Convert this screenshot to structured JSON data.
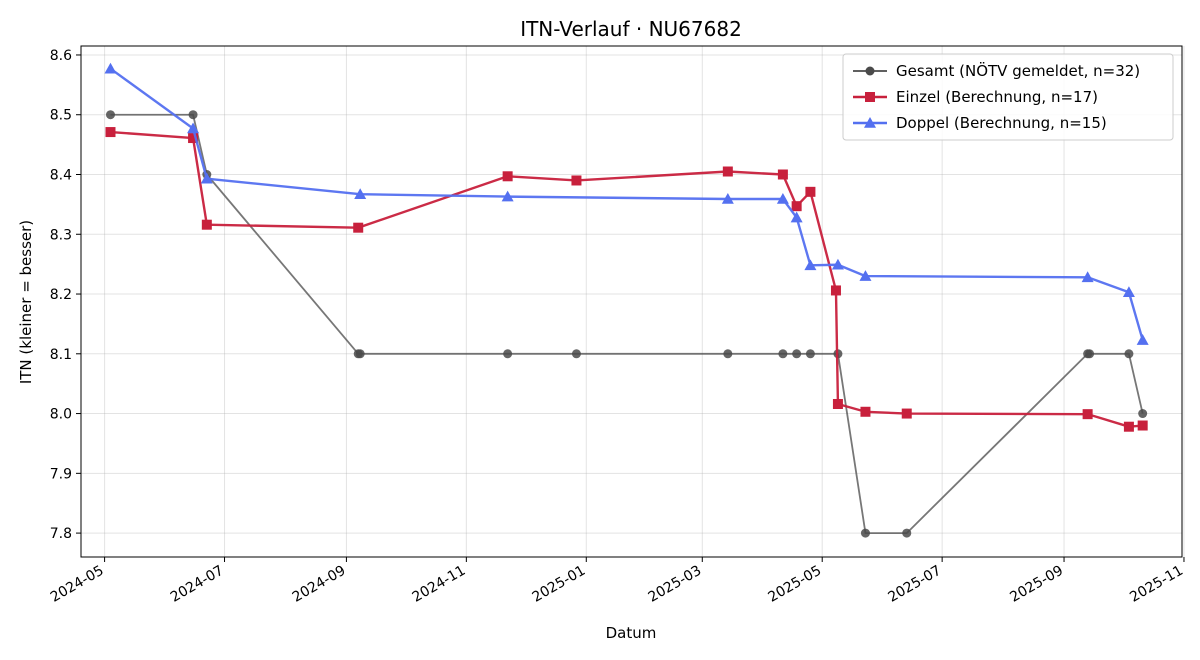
{
  "chart_data": {
    "type": "line",
    "title": "ITN-Verlauf · NU67682",
    "xlabel": "Datum",
    "ylabel": "ITN  (kleiner = besser)",
    "x_type": "date",
    "xlim": [
      "2024-04-19",
      "2025-10-31"
    ],
    "ylim": [
      7.76,
      8.615
    ],
    "x_ticks": [
      {
        "date": "2024-05-01",
        "label": "2024-05"
      },
      {
        "date": "2024-07-01",
        "label": "2024-07"
      },
      {
        "date": "2024-09-01",
        "label": "2024-09"
      },
      {
        "date": "2024-11-01",
        "label": "2024-11"
      },
      {
        "date": "2025-01-01",
        "label": "2025-01"
      },
      {
        "date": "2025-03-01",
        "label": "2025-03"
      },
      {
        "date": "2025-05-01",
        "label": "2025-05"
      },
      {
        "date": "2025-07-01",
        "label": "2025-07"
      },
      {
        "date": "2025-09-01",
        "label": "2025-09"
      },
      {
        "date": "2025-11-01",
        "label": "2025-11"
      }
    ],
    "y_ticks": [
      7.8,
      7.9,
      8.0,
      8.1,
      8.2,
      8.3,
      8.4,
      8.5,
      8.6
    ],
    "grid": true,
    "legend_position": "top-right",
    "series": [
      {
        "name": "Gesamt (NÖTV gemeldet, n=32)",
        "color": "#4a4a4a",
        "marker": "circle",
        "points": [
          {
            "x": "2024-05-04",
            "y": 8.5
          },
          {
            "x": "2024-06-15",
            "y": 8.5
          },
          {
            "x": "2024-06-22",
            "y": 8.4
          },
          {
            "x": "2024-09-07",
            "y": 8.1
          },
          {
            "x": "2024-09-08",
            "y": 8.1
          },
          {
            "x": "2024-11-22",
            "y": 8.1
          },
          {
            "x": "2024-12-27",
            "y": 8.1
          },
          {
            "x": "2025-03-14",
            "y": 8.1
          },
          {
            "x": "2025-04-11",
            "y": 8.1
          },
          {
            "x": "2025-04-18",
            "y": 8.1
          },
          {
            "x": "2025-04-25",
            "y": 8.1
          },
          {
            "x": "2025-05-09",
            "y": 8.1
          },
          {
            "x": "2025-05-23",
            "y": 7.8
          },
          {
            "x": "2025-06-13",
            "y": 7.8
          },
          {
            "x": "2025-09-13",
            "y": 8.1
          },
          {
            "x": "2025-09-14",
            "y": 8.1
          },
          {
            "x": "2025-10-04",
            "y": 8.1
          },
          {
            "x": "2025-10-11",
            "y": 8.0
          }
        ]
      },
      {
        "name": "Einzel (Berechnung, n=17)",
        "color": "#c8203c",
        "marker": "square",
        "points": [
          {
            "x": "2024-05-04",
            "y": 8.471
          },
          {
            "x": "2024-06-15",
            "y": 8.461
          },
          {
            "x": "2024-06-22",
            "y": 8.316
          },
          {
            "x": "2024-09-07",
            "y": 8.311
          },
          {
            "x": "2024-11-22",
            "y": 8.397
          },
          {
            "x": "2024-12-27",
            "y": 8.39
          },
          {
            "x": "2025-03-14",
            "y": 8.405
          },
          {
            "x": "2025-04-11",
            "y": 8.4
          },
          {
            "x": "2025-04-18",
            "y": 8.347
          },
          {
            "x": "2025-04-25",
            "y": 8.371
          },
          {
            "x": "2025-05-08",
            "y": 8.206
          },
          {
            "x": "2025-05-09",
            "y": 8.016
          },
          {
            "x": "2025-05-23",
            "y": 8.003
          },
          {
            "x": "2025-06-13",
            "y": 8.0
          },
          {
            "x": "2025-09-13",
            "y": 7.999
          },
          {
            "x": "2025-10-04",
            "y": 7.978
          },
          {
            "x": "2025-10-11",
            "y": 7.98
          }
        ]
      },
      {
        "name": "Doppel (Berechnung, n=15)",
        "color": "#5470f0",
        "marker": "triangle",
        "points": [
          {
            "x": "2024-05-04",
            "y": 8.577
          },
          {
            "x": "2024-06-15",
            "y": 8.477
          },
          {
            "x": "2024-06-22",
            "y": 8.393
          },
          {
            "x": "2024-09-08",
            "y": 8.367
          },
          {
            "x": "2024-11-22",
            "y": 8.363
          },
          {
            "x": "2025-03-14",
            "y": 8.359
          },
          {
            "x": "2025-04-11",
            "y": 8.359
          },
          {
            "x": "2025-04-18",
            "y": 8.328
          },
          {
            "x": "2025-04-25",
            "y": 8.248
          },
          {
            "x": "2025-05-09",
            "y": 8.249
          },
          {
            "x": "2025-05-23",
            "y": 8.23
          },
          {
            "x": "2025-09-13",
            "y": 8.228
          },
          {
            "x": "2025-10-04",
            "y": 8.203
          },
          {
            "x": "2025-10-11",
            "y": 8.123
          }
        ]
      }
    ]
  }
}
